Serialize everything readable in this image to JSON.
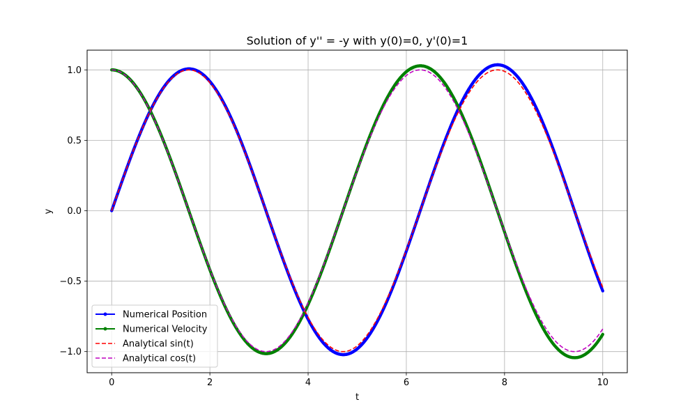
{
  "chart_data": {
    "type": "line",
    "title": "Solution of y'' = -y with y(0)=0, y'(0)=1",
    "xlabel": "t",
    "ylabel": "y",
    "xlim": [
      -0.5,
      10.5
    ],
    "ylim": [
      -1.15,
      1.14
    ],
    "xticks": [
      0,
      2,
      4,
      6,
      8,
      10
    ],
    "xtick_labels": [
      "0",
      "2",
      "4",
      "6",
      "8",
      "10"
    ],
    "yticks": [
      -1.0,
      -0.5,
      0.0,
      0.5,
      1.0
    ],
    "ytick_labels": [
      "−1.0",
      "−0.5",
      "0.0",
      "0.5",
      "1.0"
    ],
    "grid": true,
    "legend_position": "lower-left",
    "t_range": [
      0,
      10
    ],
    "series": [
      {
        "name": "Numerical Position",
        "color": "#0000ff",
        "style": "solid-markers",
        "formula": "sin(t)*(1+0.0046*t)"
      },
      {
        "name": "Numerical Velocity",
        "color": "#008000",
        "style": "solid-markers",
        "formula": "cos(t)*(1+0.0046*t)"
      },
      {
        "name": "Analytical sin(t)",
        "color": "#ff0000",
        "style": "dashed",
        "formula": "sin(t)"
      },
      {
        "name": "Analytical cos(t)",
        "color": "#bf00bf",
        "style": "dashed",
        "formula": "cos(t)"
      }
    ]
  }
}
